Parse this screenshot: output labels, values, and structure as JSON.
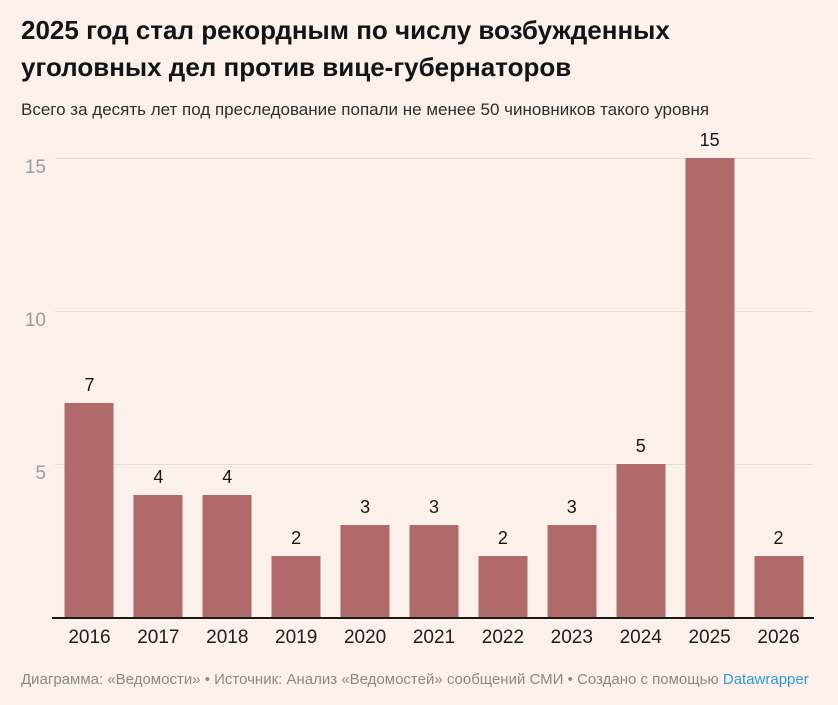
{
  "header": {
    "title": "2025 год стал рекордным по числу возбужденных уголовных дел против вице-губернаторов",
    "subtitle": "Всего за десять лет под преследование попали не менее 50 чиновников такого уровня"
  },
  "chart_data": {
    "type": "bar",
    "categories": [
      "2016",
      "2017",
      "2018",
      "2019",
      "2020",
      "2021",
      "2022",
      "2023",
      "2024",
      "2025",
      "2026"
    ],
    "values": [
      7,
      4,
      4,
      2,
      3,
      3,
      2,
      3,
      5,
      15,
      2
    ],
    "title": "2025 год стал рекордным по числу возбужденных уголовных дел против вице-губернаторов",
    "subtitle": "Всего за десять лет под преследование попали не менее 50 чиновников такого уровня",
    "xlabel": "",
    "ylabel": "",
    "ylim": [
      0,
      15
    ],
    "yticks": [
      5,
      10,
      15
    ],
    "grid": true,
    "legend_position": "none",
    "value_labels": true,
    "bar_color": "#b16a6a",
    "background_color": "#fcf0eb",
    "gridline_color": "#e5dbd7",
    "axis_color": "#191919"
  },
  "footer": {
    "text": "Диаграмма: «Ведомости» • Источник: Анализ «Ведомостей» сообщений СМИ • Создано с помощью",
    "link_label": "Datawrapper",
    "link_color": "#2f9ad7"
  }
}
